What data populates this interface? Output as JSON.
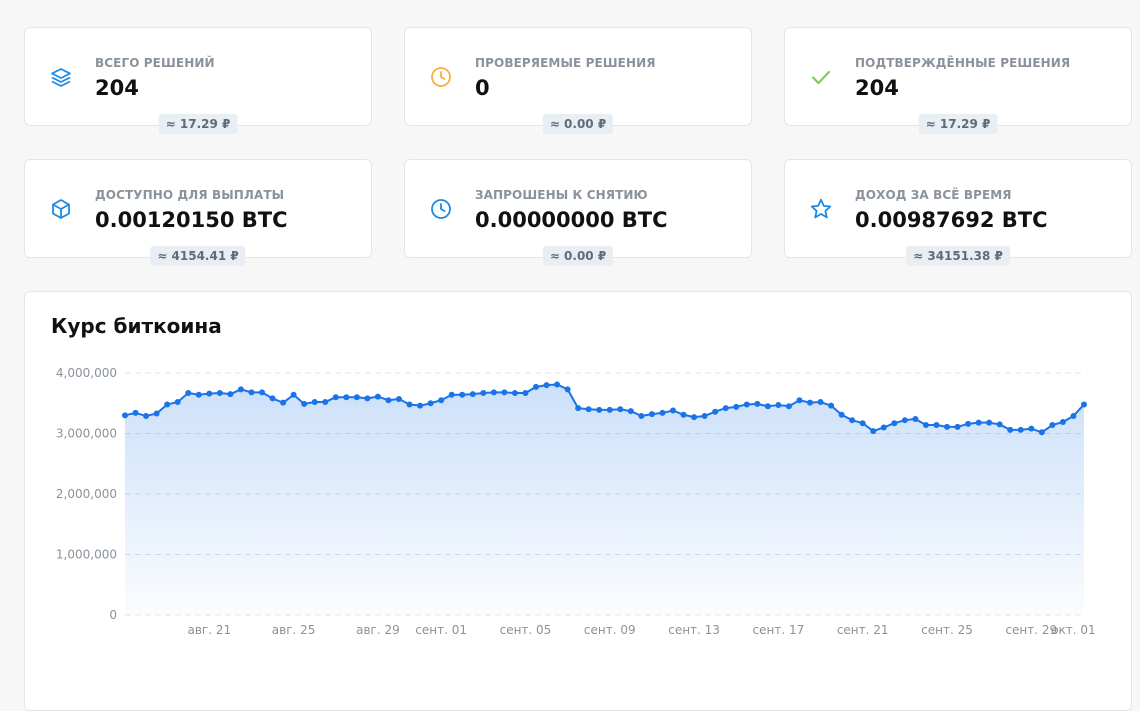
{
  "stats": [
    {
      "label": "ВСЕГО РЕШЕНИЙ",
      "value": "204",
      "badge": "≈ 17.29 ₽",
      "icon": "layers-icon",
      "icon_color": "#1e88e5"
    },
    {
      "label": "ПРОВЕРЯЕМЫЕ РЕШЕНИЯ",
      "value": "0",
      "badge": "≈ 0.00 ₽",
      "icon": "clock-icon",
      "icon_color": "#f5b041"
    },
    {
      "label": "ПОДТВЕРЖДЁННЫЕ РЕШЕНИЯ",
      "value": "204",
      "badge": "≈ 17.29 ₽",
      "icon": "check-icon",
      "icon_color": "#7ccf5b"
    },
    {
      "label": "ДОСТУПНО ДЛЯ ВЫПЛАТЫ",
      "value": "0.00120150 BTC",
      "badge": "≈ 4154.41 ₽",
      "icon": "cube-icon",
      "icon_color": "#1e88e5"
    },
    {
      "label": "ЗАПРОШЕНЫ К СНЯТИЮ",
      "value": "0.00000000 BTC",
      "badge": "≈ 0.00 ₽",
      "icon": "clock-icon",
      "icon_color": "#1e88e5"
    },
    {
      "label": "ДОХОД ЗА ВСЁ ВРЕМЯ",
      "value": "0.00987692 BTC",
      "badge": "≈ 34151.38 ₽",
      "icon": "star-icon",
      "icon_color": "#1e88e5"
    }
  ],
  "chart": {
    "title": "Курс биткоина"
  },
  "chart_data": {
    "type": "area",
    "line_color": "#1a73e8",
    "grid": true,
    "ylim": [
      0,
      4000000
    ],
    "y_ticks": [
      0,
      1000000,
      2000000,
      3000000,
      4000000
    ],
    "y_tick_labels": [
      "0",
      "1,000,000",
      "2,000,000",
      "3,000,000",
      "4,000,000"
    ],
    "x_tick_labels": [
      {
        "label": "авг. 21",
        "index": 8
      },
      {
        "label": "авг. 25",
        "index": 16
      },
      {
        "label": "авг. 29",
        "index": 24
      },
      {
        "label": "сент. 01",
        "index": 30
      },
      {
        "label": "сент. 05",
        "index": 38
      },
      {
        "label": "сент. 09",
        "index": 46
      },
      {
        "label": "сент. 13",
        "index": 54
      },
      {
        "label": "сент. 17",
        "index": 62
      },
      {
        "label": "сент. 21",
        "index": 70
      },
      {
        "label": "сент. 25",
        "index": 78
      },
      {
        "label": "сент. 29",
        "index": 86
      },
      {
        "label": "окт. 01",
        "index": 90
      }
    ],
    "values": [
      3300000,
      3340000,
      3290000,
      3330000,
      3480000,
      3520000,
      3670000,
      3640000,
      3660000,
      3670000,
      3650000,
      3730000,
      3680000,
      3680000,
      3580000,
      3510000,
      3640000,
      3490000,
      3520000,
      3520000,
      3600000,
      3600000,
      3600000,
      3580000,
      3610000,
      3550000,
      3570000,
      3480000,
      3460000,
      3500000,
      3550000,
      3640000,
      3640000,
      3650000,
      3670000,
      3680000,
      3680000,
      3670000,
      3670000,
      3770000,
      3800000,
      3810000,
      3730000,
      3420000,
      3400000,
      3390000,
      3390000,
      3400000,
      3370000,
      3290000,
      3320000,
      3340000,
      3380000,
      3310000,
      3270000,
      3290000,
      3360000,
      3420000,
      3440000,
      3480000,
      3490000,
      3450000,
      3470000,
      3450000,
      3550000,
      3510000,
      3520000,
      3460000,
      3310000,
      3220000,
      3170000,
      3040000,
      3100000,
      3170000,
      3220000,
      3240000,
      3140000,
      3140000,
      3110000,
      3110000,
      3160000,
      3180000,
      3180000,
      3150000,
      3060000,
      3060000,
      3080000,
      3020000,
      3140000,
      3190000,
      3290000,
      3480000
    ]
  }
}
